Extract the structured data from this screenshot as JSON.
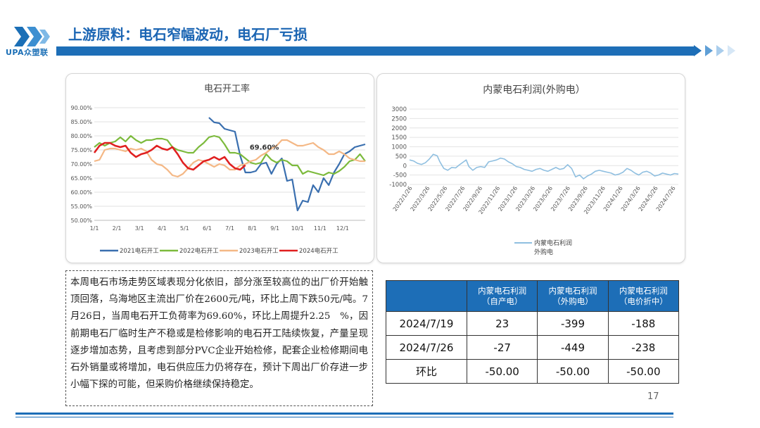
{
  "header": {
    "logo_text": "UPA众塑联",
    "title": "上游原料：电石窄幅波动，电石厂亏损",
    "brand_color": "#1d6eb7"
  },
  "chart_data": [
    {
      "type": "line",
      "title": "电石开工率",
      "y_ticks": [
        "90.00%",
        "85.00%",
        "80.00%",
        "75.00%",
        "70.00%",
        "65.00%",
        "60.00%",
        "55.00%",
        "50.00%"
      ],
      "ylim": [
        50,
        90
      ],
      "x_ticks": [
        "1/1",
        "2/1",
        "3/1",
        "4/1",
        "5/1",
        "6/1",
        "7/1",
        "8/1",
        "9/1",
        "10/1",
        "11/1",
        "12/1"
      ],
      "xlim": [
        0,
        52
      ],
      "grid": true,
      "legend_position": "bottom",
      "annotation": "69.60%",
      "series": [
        {
          "name": "2021电石开工",
          "color": "#3a6faf",
          "points": [
            [
              22,
              86.5
            ],
            [
              23,
              84.8
            ],
            [
              24,
              84.5
            ],
            [
              25,
              82.5
            ],
            [
              26,
              82.0
            ],
            [
              27,
              81.5
            ],
            [
              28,
              73.0
            ],
            [
              29,
              67.0
            ],
            [
              30,
              67.0
            ],
            [
              31,
              67.5
            ],
            [
              32,
              70.0
            ],
            [
              33,
              70.5
            ],
            [
              34,
              66.5
            ],
            [
              35,
              70.0
            ],
            [
              36,
              72.0
            ],
            [
              37,
              64.0
            ],
            [
              38,
              64.5
            ],
            [
              39,
              53.5
            ],
            [
              40,
              57.0
            ],
            [
              41,
              56.5
            ],
            [
              42,
              62.5
            ],
            [
              43,
              60.0
            ],
            [
              44,
              65.0
            ],
            [
              45,
              62.5
            ],
            [
              46,
              67.0
            ],
            [
              47,
              70.0
            ],
            [
              48,
              73.5
            ],
            [
              49,
              74.5
            ],
            [
              50,
              76.0
            ],
            [
              51,
              76.5
            ],
            [
              52,
              77.0
            ]
          ]
        },
        {
          "name": "2022电石开工",
          "color": "#7cba3c",
          "points": [
            [
              0,
              76.0
            ],
            [
              1,
              77.5
            ],
            [
              2,
              76.5
            ],
            [
              3,
              77.5
            ],
            [
              4,
              78.0
            ],
            [
              5,
              79.5
            ],
            [
              6,
              78.0
            ],
            [
              7,
              80.0
            ],
            [
              8,
              78.5
            ],
            [
              9,
              77.5
            ],
            [
              10,
              78.5
            ],
            [
              11,
              78.5
            ],
            [
              12,
              79.0
            ],
            [
              13,
              79.0
            ],
            [
              14,
              78.5
            ],
            [
              15,
              76.0
            ],
            [
              16,
              75.0
            ],
            [
              17,
              74.5
            ],
            [
              18,
              74.0
            ],
            [
              19,
              74.0
            ],
            [
              20,
              76.0
            ],
            [
              21,
              77.5
            ],
            [
              22,
              79.5
            ],
            [
              23,
              80.0
            ],
            [
              24,
              79.5
            ],
            [
              25,
              77.0
            ],
            [
              26,
              74.0
            ],
            [
              27,
              74.0
            ],
            [
              28,
              73.5
            ],
            [
              29,
              72.0
            ],
            [
              30,
              70.5
            ],
            [
              31,
              70.0
            ],
            [
              32,
              70.5
            ],
            [
              33,
              73.5
            ],
            [
              34,
              71.5
            ],
            [
              35,
              70.5
            ],
            [
              36,
              71.5
            ],
            [
              37,
              71.0
            ],
            [
              38,
              69.5
            ],
            [
              39,
              69.5
            ],
            [
              40,
              66.5
            ],
            [
              41,
              67.5
            ],
            [
              42,
              67.0
            ],
            [
              43,
              66.5
            ],
            [
              44,
              66.0
            ],
            [
              45,
              67.0
            ],
            [
              46,
              66.5
            ],
            [
              47,
              67.5
            ],
            [
              48,
              69.0
            ],
            [
              49,
              71.0
            ],
            [
              50,
              71.5
            ],
            [
              51,
              73.5
            ],
            [
              52,
              71.0
            ]
          ]
        },
        {
          "name": "2023电石开工",
          "color": "#f4b886",
          "points": [
            [
              0,
              71.0
            ],
            [
              1,
              71.5
            ],
            [
              2,
              75.0
            ],
            [
              3,
              75.5
            ],
            [
              4,
              75.5
            ],
            [
              5,
              75.0
            ],
            [
              6,
              74.5
            ],
            [
              7,
              75.5
            ],
            [
              8,
              75.0
            ],
            [
              9,
              75.5
            ],
            [
              10,
              74.5
            ],
            [
              11,
              71.5
            ],
            [
              12,
              70.0
            ],
            [
              13,
              69.5
            ],
            [
              14,
              68.0
            ],
            [
              15,
              66.0
            ],
            [
              16,
              65.5
            ],
            [
              17,
              66.5
            ],
            [
              18,
              68.5
            ],
            [
              19,
              70.5
            ],
            [
              20,
              71.5
            ],
            [
              21,
              71.0
            ],
            [
              22,
              70.0
            ],
            [
              23,
              69.0
            ],
            [
              24,
              70.0
            ],
            [
              25,
              69.5
            ],
            [
              26,
              68.0
            ],
            [
              27,
              68.0
            ],
            [
              28,
              69.5
            ],
            [
              29,
              70.0
            ],
            [
              30,
              71.0
            ],
            [
              31,
              71.5
            ],
            [
              32,
              73.0
            ],
            [
              33,
              74.0
            ],
            [
              34,
              75.5
            ],
            [
              35,
              76.5
            ],
            [
              36,
              78.5
            ],
            [
              37,
              78.5
            ],
            [
              38,
              77.5
            ],
            [
              39,
              76.5
            ],
            [
              40,
              76.5
            ],
            [
              41,
              77.0
            ],
            [
              42,
              77.5
            ],
            [
              43,
              76.0
            ],
            [
              44,
              75.0
            ],
            [
              45,
              73.5
            ],
            [
              46,
              73.5
            ],
            [
              47,
              74.5
            ],
            [
              48,
              73.5
            ],
            [
              49,
              72.0
            ],
            [
              50,
              71.5
            ],
            [
              51,
              71.0
            ],
            [
              52,
              71.0
            ]
          ]
        },
        {
          "name": "2024电石开工",
          "color": "#e02020",
          "points": [
            [
              0,
              74.0
            ],
            [
              1,
              76.5
            ],
            [
              2,
              77.5
            ],
            [
              3,
              77.5
            ],
            [
              4,
              76.5
            ],
            [
              5,
              76.0
            ],
            [
              6,
              76.5
            ],
            [
              7,
              74.0
            ],
            [
              8,
              72.5
            ],
            [
              9,
              73.5
            ],
            [
              10,
              74.0
            ],
            [
              11,
              75.0
            ],
            [
              12,
              76.5
            ],
            [
              13,
              75.5
            ],
            [
              14,
              75.0
            ],
            [
              15,
              76.0
            ],
            [
              16,
              73.5
            ],
            [
              17,
              70.5
            ],
            [
              18,
              68.5
            ],
            [
              19,
              68.0
            ],
            [
              20,
              69.5
            ],
            [
              21,
              71.0
            ],
            [
              22,
              71.5
            ],
            [
              23,
              72.5
            ],
            [
              24,
              71.5
            ],
            [
              25,
              72.5
            ],
            [
              26,
              70.0
            ],
            [
              27,
              68.5
            ],
            [
              28,
              68.0
            ],
            [
              29,
              69.6
            ]
          ]
        }
      ]
    },
    {
      "type": "line",
      "title": "内蒙电石利润(外购电）",
      "y_ticks": [
        "3000",
        "2500",
        "2000",
        "1500",
        "1000",
        "500",
        "0",
        "-500",
        "-1000"
      ],
      "ylim": [
        -1000,
        3000
      ],
      "x_ticks": [
        "2022/1/26",
        "2022/3/26",
        "2022/5/26",
        "2022/7/26",
        "2022/9/26",
        "2022/11/26",
        "2023/1/26",
        "2023/3/26",
        "2023/5/26",
        "2023/7/26",
        "2023/9/26",
        "2023/11/26",
        "2024/1/26",
        "2024/3/26",
        "2024/5/26",
        "2024/7/26"
      ],
      "legend_position": "bottom",
      "legend_line1": "内蒙电石利润",
      "legend_line2": "外购电",
      "series": [
        {
          "name": "内蒙电石利润 外购电",
          "color": "#8fbfe0",
          "points": [
            [
              0,
              300
            ],
            [
              0.3,
              250
            ],
            [
              0.6,
              120
            ],
            [
              0.9,
              60
            ],
            [
              1.2,
              150
            ],
            [
              1.5,
              350
            ],
            [
              1.8,
              600
            ],
            [
              2.1,
              520
            ],
            [
              2.3,
              200
            ],
            [
              2.6,
              -150
            ],
            [
              2.9,
              -250
            ],
            [
              3.2,
              -100
            ],
            [
              3.5,
              -120
            ],
            [
              3.8,
              50
            ],
            [
              4.1,
              200
            ],
            [
              4.3,
              300
            ],
            [
              4.5,
              -50
            ],
            [
              4.8,
              -250
            ],
            [
              5.1,
              -100
            ],
            [
              5.4,
              -50
            ],
            [
              5.7,
              -100
            ],
            [
              6.0,
              200
            ],
            [
              6.3,
              250
            ],
            [
              6.6,
              300
            ],
            [
              6.9,
              400
            ],
            [
              7.2,
              350
            ],
            [
              7.5,
              200
            ],
            [
              7.8,
              100
            ],
            [
              8.1,
              -50
            ],
            [
              8.4,
              -100
            ],
            [
              8.7,
              -200
            ],
            [
              9.0,
              -250
            ],
            [
              9.3,
              -300
            ],
            [
              9.6,
              -200
            ],
            [
              9.9,
              -150
            ],
            [
              10.2,
              -250
            ],
            [
              10.5,
              -300
            ],
            [
              10.8,
              -200
            ],
            [
              11.1,
              -100
            ],
            [
              11.4,
              -200
            ],
            [
              11.7,
              -150
            ],
            [
              12.0,
              50
            ],
            [
              12.3,
              -150
            ],
            [
              12.6,
              -600
            ],
            [
              12.9,
              -500
            ],
            [
              13.2,
              -700
            ],
            [
              13.5,
              -550
            ],
            [
              13.8,
              -450
            ],
            [
              14.1,
              -300
            ],
            [
              14.4,
              -250
            ],
            [
              14.7,
              -300
            ],
            [
              15.0,
              -350
            ],
            [
              15.3,
              -400
            ],
            [
              15.6,
              -500
            ],
            [
              15.9,
              -450
            ],
            [
              16.2,
              -350
            ],
            [
              16.5,
              -150
            ],
            [
              16.8,
              -250
            ],
            [
              17.1,
              -400
            ],
            [
              17.4,
              -500
            ],
            [
              17.7,
              -350
            ],
            [
              18.0,
              -300
            ],
            [
              18.3,
              -400
            ],
            [
              18.6,
              -550
            ],
            [
              18.9,
              -500
            ],
            [
              19.2,
              -400
            ],
            [
              19.5,
              -450
            ],
            [
              19.8,
              -500
            ],
            [
              20.1,
              -420
            ],
            [
              20.4,
              -450
            ]
          ]
        }
      ]
    }
  ],
  "commentary": "本周电石市场走势区域表现分化依旧，部分涨至较高位的出厂价开始触顶回落，乌海地区主流出厂价在2600元/吨，环比上周下跌50元/吨。7月26日，当周电石开工负荷率为69.60%，环比上周提升2.25　%，因前期电石厂临时生产不稳或是检修影响的电石开工陆续恢复，产量呈现逐步增加态势，且考虑到部分PVC企业开始检修，配套企业检修期间电石外销量或将增加，电石供应压力仍将存在，预计下周出厂价存进一步小幅下探的可能，但采购价格继续保持稳定。",
  "profit_table": {
    "headers": [
      {
        "line1": "内蒙电石利润",
        "line2": "（自产电）"
      },
      {
        "line1": "内蒙电石利润",
        "line2": "（外购电）"
      },
      {
        "line1": "内蒙电石利润",
        "line2": "（电价折中）"
      }
    ],
    "rows": [
      {
        "label": "2024/7/19",
        "values": [
          "23",
          "-399",
          "-188"
        ]
      },
      {
        "label": "2024/7/26",
        "values": [
          "-27",
          "-449",
          "-238"
        ]
      },
      {
        "label": "环比",
        "values": [
          "-50.00",
          "-50.00",
          "-50.00"
        ]
      }
    ]
  },
  "page_number": "17"
}
